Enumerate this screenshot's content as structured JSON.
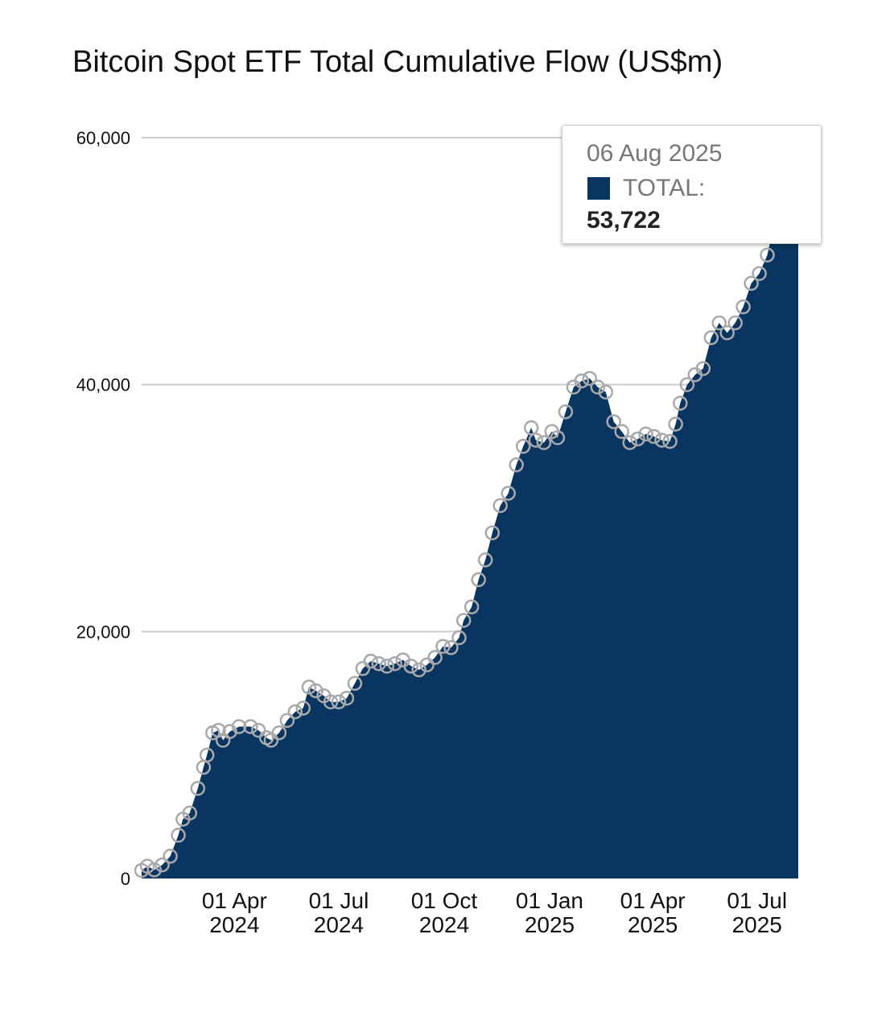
{
  "colors": {
    "area": "#0a3560",
    "marker": "#a7a9ad",
    "grid": "#cccccc",
    "tooltip_border": "#cfcfcf"
  },
  "tooltip": {
    "date": "06 Aug 2025",
    "series": "TOTAL:",
    "value": "53,722"
  },
  "chart_data": {
    "type": "area",
    "title": "Bitcoin Spot ETF Total Cumulative Flow (US$m)",
    "xlabel": "",
    "ylabel": "",
    "ylim": [
      0,
      60000
    ],
    "yticks": [
      0,
      20000,
      40000,
      60000
    ],
    "ytick_labels": [
      "0",
      "20,000",
      "40,000",
      "60,000"
    ],
    "xlim": [
      "2024-01-11",
      "2025-08-06"
    ],
    "xticks": [
      {
        "date": "2024-04-01",
        "line1": "01 Apr",
        "line2": "2024"
      },
      {
        "date": "2024-07-01",
        "line1": "01 Jul",
        "line2": "2024"
      },
      {
        "date": "2024-10-01",
        "line1": "01 Oct",
        "line2": "2024"
      },
      {
        "date": "2025-01-01",
        "line1": "01 Jan",
        "line2": "2025"
      },
      {
        "date": "2025-04-01",
        "line1": "01 Apr",
        "line2": "2025"
      },
      {
        "date": "2025-07-01",
        "line1": "01 Jul",
        "line2": "2025"
      }
    ],
    "grid": true,
    "legend": "none",
    "series": [
      {
        "name": "TOTAL",
        "points": [
          [
            "2024-01-11",
            650
          ],
          [
            "2024-01-16",
            1000
          ],
          [
            "2024-01-22",
            700
          ],
          [
            "2024-01-29",
            1100
          ],
          [
            "2024-02-05",
            1800
          ],
          [
            "2024-02-12",
            3500
          ],
          [
            "2024-02-16",
            4800
          ],
          [
            "2024-02-22",
            5300
          ],
          [
            "2024-02-29",
            7300
          ],
          [
            "2024-03-05",
            9000
          ],
          [
            "2024-03-08",
            10000
          ],
          [
            "2024-03-13",
            11800
          ],
          [
            "2024-03-18",
            12000
          ],
          [
            "2024-03-22",
            11200
          ],
          [
            "2024-03-28",
            11900
          ],
          [
            "2024-04-05",
            12300
          ],
          [
            "2024-04-15",
            12300
          ],
          [
            "2024-04-22",
            12000
          ],
          [
            "2024-04-29",
            11400
          ],
          [
            "2024-05-03",
            11200
          ],
          [
            "2024-05-10",
            11800
          ],
          [
            "2024-05-17",
            12800
          ],
          [
            "2024-05-24",
            13500
          ],
          [
            "2024-05-31",
            13800
          ],
          [
            "2024-06-05",
            15500
          ],
          [
            "2024-06-11",
            15200
          ],
          [
            "2024-06-18",
            14800
          ],
          [
            "2024-06-24",
            14300
          ],
          [
            "2024-07-01",
            14300
          ],
          [
            "2024-07-08",
            14600
          ],
          [
            "2024-07-15",
            15800
          ],
          [
            "2024-07-22",
            17000
          ],
          [
            "2024-07-29",
            17600
          ],
          [
            "2024-08-05",
            17400
          ],
          [
            "2024-08-12",
            17200
          ],
          [
            "2024-08-19",
            17400
          ],
          [
            "2024-08-26",
            17700
          ],
          [
            "2024-09-02",
            17200
          ],
          [
            "2024-09-09",
            16900
          ],
          [
            "2024-09-16",
            17300
          ],
          [
            "2024-09-23",
            17900
          ],
          [
            "2024-09-30",
            18800
          ],
          [
            "2024-10-07",
            18700
          ],
          [
            "2024-10-14",
            19500
          ],
          [
            "2024-10-18",
            20900
          ],
          [
            "2024-10-25",
            22000
          ],
          [
            "2024-10-31",
            24200
          ],
          [
            "2024-11-06",
            25800
          ],
          [
            "2024-11-12",
            28000
          ],
          [
            "2024-11-19",
            30200
          ],
          [
            "2024-11-26",
            31200
          ],
          [
            "2024-12-03",
            33500
          ],
          [
            "2024-12-09",
            35000
          ],
          [
            "2024-12-16",
            36500
          ],
          [
            "2024-12-20",
            35500
          ],
          [
            "2024-12-27",
            35300
          ],
          [
            "2025-01-03",
            36200
          ],
          [
            "2025-01-08",
            35700
          ],
          [
            "2025-01-15",
            37800
          ],
          [
            "2025-01-22",
            39800
          ],
          [
            "2025-01-29",
            40300
          ],
          [
            "2025-02-05",
            40500
          ],
          [
            "2025-02-12",
            39800
          ],
          [
            "2025-02-19",
            39400
          ],
          [
            "2025-02-26",
            37000
          ],
          [
            "2025-03-05",
            36200
          ],
          [
            "2025-03-12",
            35300
          ],
          [
            "2025-03-19",
            35600
          ],
          [
            "2025-03-26",
            36000
          ],
          [
            "2025-04-02",
            35800
          ],
          [
            "2025-04-09",
            35500
          ],
          [
            "2025-04-16",
            35400
          ],
          [
            "2025-04-21",
            36800
          ],
          [
            "2025-04-25",
            38500
          ],
          [
            "2025-05-01",
            40000
          ],
          [
            "2025-05-08",
            40800
          ],
          [
            "2025-05-15",
            41300
          ],
          [
            "2025-05-22",
            43800
          ],
          [
            "2025-05-29",
            45000
          ],
          [
            "2025-06-05",
            44200
          ],
          [
            "2025-06-12",
            45000
          ],
          [
            "2025-06-19",
            46300
          ],
          [
            "2025-06-26",
            48200
          ],
          [
            "2025-07-03",
            49000
          ],
          [
            "2025-07-10",
            50500
          ],
          [
            "2025-07-17",
            53500
          ],
          [
            "2025-07-24",
            54500
          ],
          [
            "2025-07-31",
            54000
          ],
          [
            "2025-08-06",
            53722
          ]
        ]
      }
    ]
  }
}
